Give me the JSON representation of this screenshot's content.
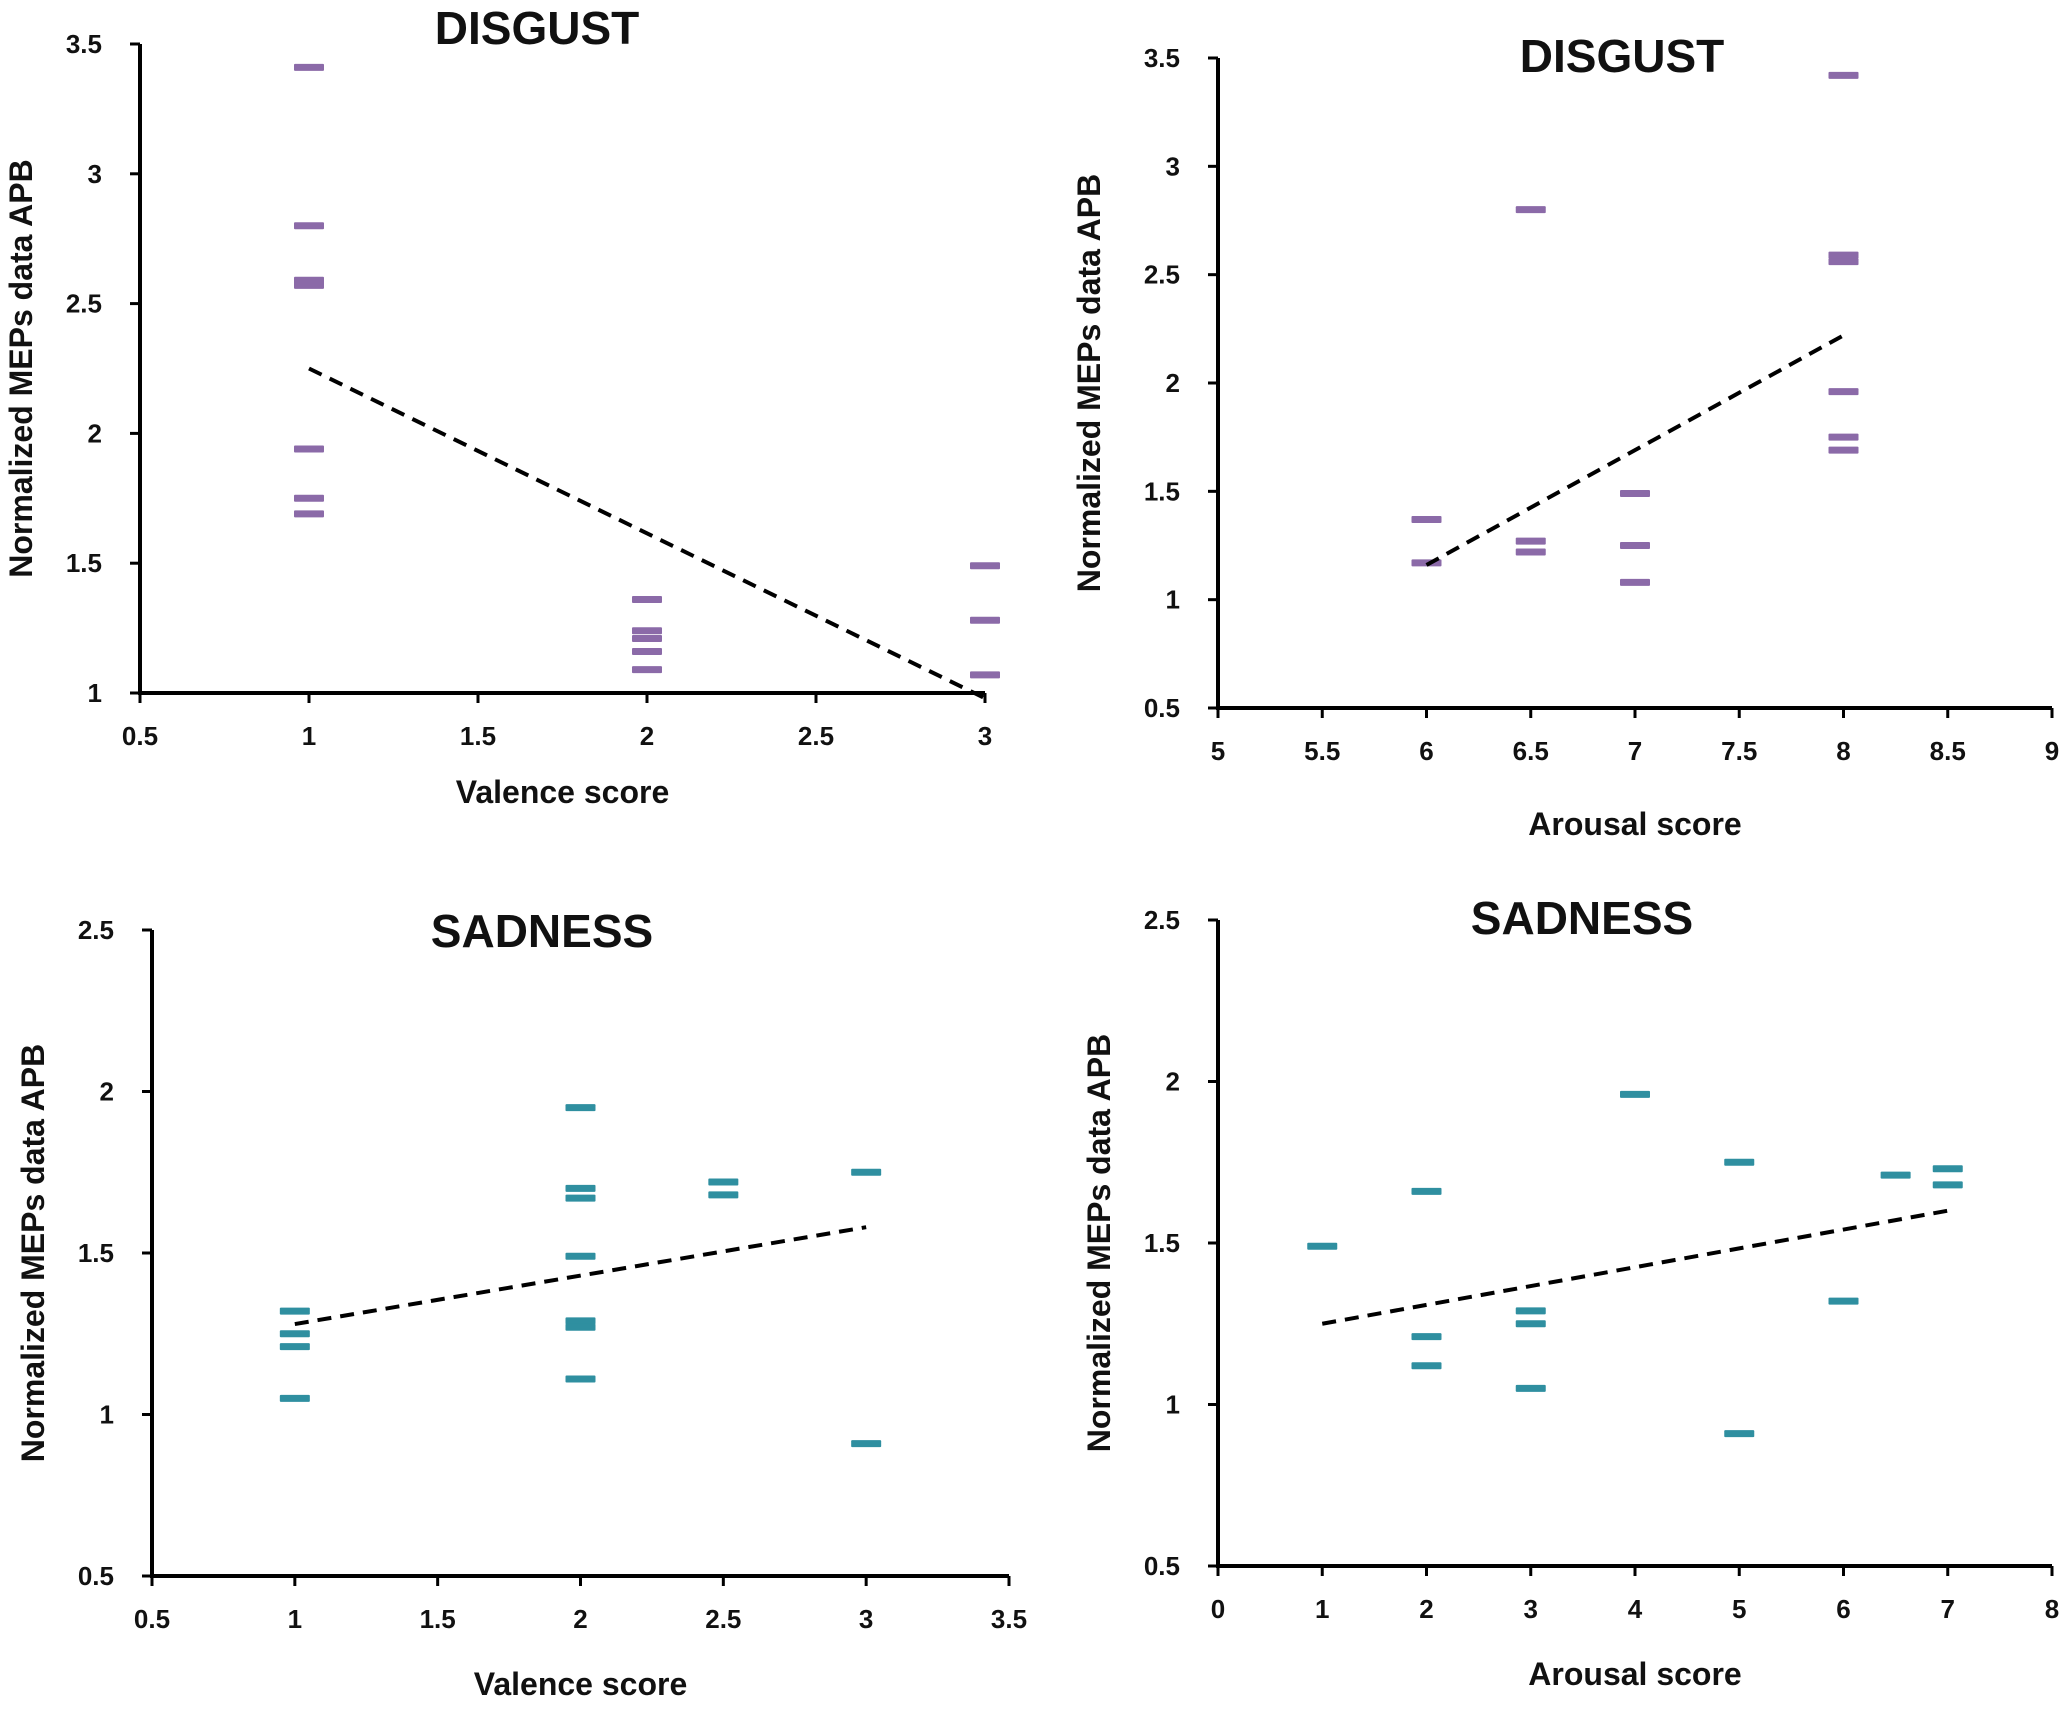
{
  "chart_data": [
    {
      "type": "scatter",
      "id": "disgust-valence",
      "title": "DISGUST",
      "xlabel": "Valence score",
      "ylabel": "Normalized MEPs data APB",
      "xlim": [
        0.5,
        3
      ],
      "ylim": [
        1,
        3.5
      ],
      "xticks": [
        "0.5",
        "1",
        "1.5",
        "2",
        "2.5",
        "3"
      ],
      "yticks": [
        "1",
        "1.5",
        "2",
        "2.5",
        "3",
        "3.5"
      ],
      "color": "#8b6aa8",
      "points": [
        [
          1,
          3.41
        ],
        [
          1,
          2.8
        ],
        [
          1,
          2.59
        ],
        [
          1,
          2.57
        ],
        [
          1,
          1.94
        ],
        [
          1,
          1.75
        ],
        [
          1,
          1.69
        ],
        [
          2,
          1.36
        ],
        [
          2,
          1.24
        ],
        [
          2,
          1.21
        ],
        [
          2,
          1.16
        ],
        [
          2,
          1.09
        ],
        [
          3,
          1.49
        ],
        [
          3,
          1.28
        ],
        [
          3,
          1.07
        ]
      ],
      "trendline": [
        [
          1,
          2.25
        ],
        [
          3,
          0.98
        ]
      ]
    },
    {
      "type": "scatter",
      "id": "disgust-arousal",
      "title": "DISGUST",
      "xlabel": "Arousal score",
      "ylabel": "Normalized MEPs data APB",
      "xlim": [
        5,
        9
      ],
      "ylim": [
        0.5,
        3.5
      ],
      "xticks": [
        "5",
        "5.5",
        "6",
        "6.5",
        "7",
        "7.5",
        "8",
        "8.5",
        "9"
      ],
      "yticks": [
        "0.5",
        "1",
        "1.5",
        "2",
        "2.5",
        "3",
        "3.5"
      ],
      "color": "#8b6aa8",
      "points": [
        [
          6,
          1.37
        ],
        [
          6,
          1.17
        ],
        [
          6.5,
          2.8
        ],
        [
          6.5,
          1.27
        ],
        [
          6.5,
          1.22
        ],
        [
          7,
          1.49
        ],
        [
          7,
          1.25
        ],
        [
          7,
          1.08
        ],
        [
          8,
          3.42
        ],
        [
          8,
          2.59
        ],
        [
          8,
          2.56
        ],
        [
          8,
          1.96
        ],
        [
          8,
          1.75
        ],
        [
          8,
          1.69
        ]
      ],
      "trendline": [
        [
          6,
          1.16
        ],
        [
          8,
          2.22
        ]
      ]
    },
    {
      "type": "scatter",
      "id": "sadness-valence",
      "title": "SADNESS",
      "xlabel": "Valence score",
      "ylabel": "Normalized MEPs data APB",
      "xlim": [
        0.5,
        3.5
      ],
      "ylim": [
        0.5,
        2.5
      ],
      "xticks": [
        "0.5",
        "1",
        "1.5",
        "2",
        "2.5",
        "3",
        "3.5"
      ],
      "yticks": [
        "0.5",
        "1",
        "1.5",
        "2",
        "2.5"
      ],
      "color": "#2f8fa0",
      "points": [
        [
          1,
          1.32
        ],
        [
          1,
          1.25
        ],
        [
          1,
          1.21
        ],
        [
          1,
          1.05
        ],
        [
          2,
          1.95
        ],
        [
          2,
          1.7
        ],
        [
          2,
          1.67
        ],
        [
          2,
          1.49
        ],
        [
          2,
          1.29
        ],
        [
          2,
          1.27
        ],
        [
          2,
          1.11
        ],
        [
          2.5,
          1.72
        ],
        [
          2.5,
          1.68
        ],
        [
          3,
          1.75
        ],
        [
          3,
          0.91
        ]
      ],
      "trendline": [
        [
          1,
          1.28
        ],
        [
          3,
          1.58
        ]
      ]
    },
    {
      "type": "scatter",
      "id": "sadness-arousal",
      "title": "SADNESS",
      "xlabel": "Arousal score",
      "ylabel": "Normalized MEPs data APB",
      "xlim": [
        0,
        8
      ],
      "ylim": [
        0.5,
        2.5
      ],
      "xticks": [
        "0",
        "1",
        "2",
        "3",
        "4",
        "5",
        "6",
        "7",
        "8"
      ],
      "yticks": [
        "0.5",
        "1",
        "1.5",
        "2",
        "2.5"
      ],
      "color": "#2f8fa0",
      "points": [
        [
          1,
          1.49
        ],
        [
          2,
          1.66
        ],
        [
          2,
          1.21
        ],
        [
          2,
          1.12
        ],
        [
          3,
          1.29
        ],
        [
          3,
          1.25
        ],
        [
          3,
          1.05
        ],
        [
          4,
          1.96
        ],
        [
          5,
          1.75
        ],
        [
          5,
          0.91
        ],
        [
          6,
          1.32
        ],
        [
          6.5,
          1.71
        ],
        [
          7,
          1.73
        ],
        [
          7,
          1.68
        ]
      ],
      "trendline": [
        [
          1,
          1.25
        ],
        [
          7,
          1.6
        ]
      ]
    }
  ]
}
